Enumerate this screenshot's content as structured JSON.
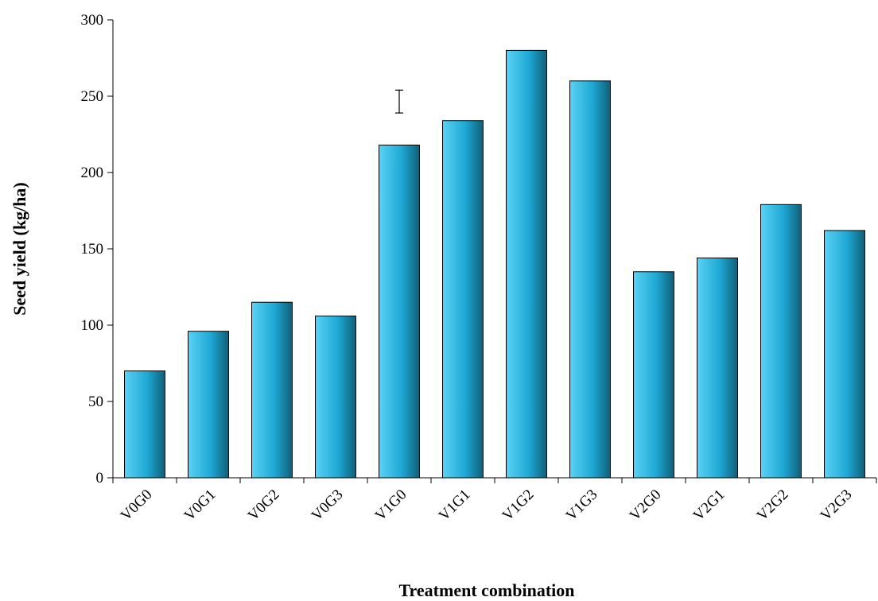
{
  "chart_data": {
    "type": "bar",
    "title": "",
    "xlabel": "Treatment combination",
    "ylabel": "Seed yield (kg/ha)",
    "categories": [
      "V0G0",
      "V0G1",
      "V0G2",
      "V0G3",
      "V1G0",
      "V1G1",
      "V1G2",
      "V1G3",
      "V2G0",
      "V2G1",
      "V2G2",
      "V2G3"
    ],
    "values": [
      70,
      96,
      115,
      106,
      218,
      234,
      280,
      260,
      135,
      144,
      179,
      162
    ],
    "yticks": [
      "0",
      "50",
      "100",
      "150",
      "200",
      "250",
      "300"
    ],
    "ylim": [
      0,
      300
    ],
    "grid": false,
    "legend": "none",
    "error_bar": {
      "category": "V1G0",
      "low": 239,
      "high": 254
    },
    "colors": {
      "bar_light": "#5ad2f4",
      "bar_mid": "#1fa9d6",
      "bar_dark": "#0f6077",
      "axis": "#000000"
    }
  }
}
